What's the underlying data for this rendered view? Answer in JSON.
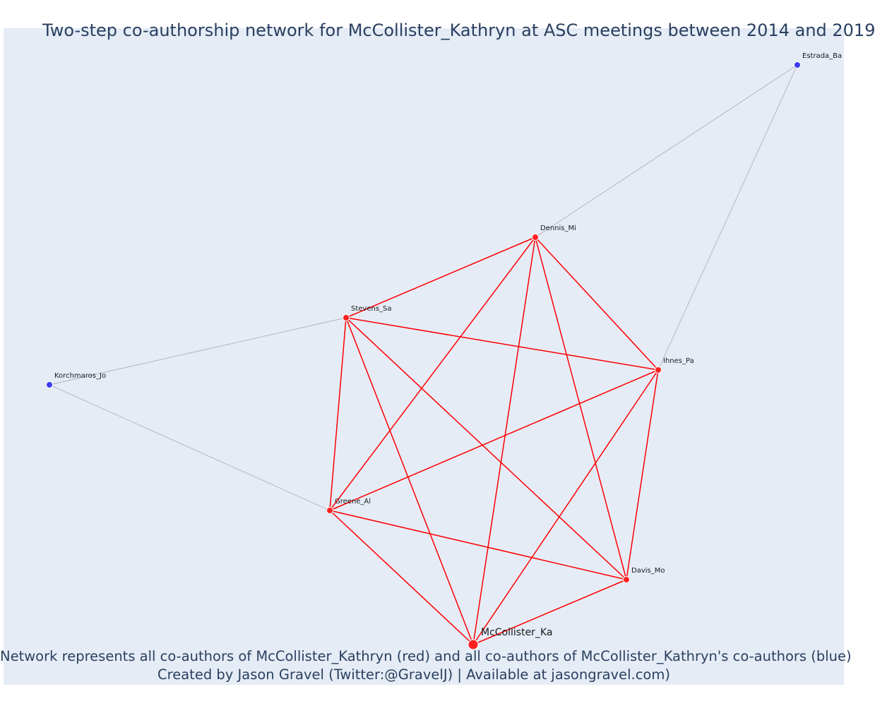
{
  "title": "Two-step co-authorship network for McCollister_Kathryn at ASC meetings between 2014 and 2019",
  "caption": {
    "line1": "Network represents all co-authors of McCollister_Kathryn (red) and all co-authors of McCollister_Kathryn's co-authors (blue)",
    "line2": "Created by Jason Gravel (Twitter:@GravelJ) | Available at jasongravel.com)"
  },
  "colors": {
    "background": "#e5ecf6",
    "red": "#ff2020",
    "blue": "#3b3bf0",
    "red_edge": "#ff0000",
    "grey_edge": "#b0b0c0",
    "text": "#2a3f5f"
  },
  "nodes": [
    {
      "id": "McCollister_Ka",
      "group": "focal"
    },
    {
      "id": "Dennis_Mi",
      "group": "red"
    },
    {
      "id": "Stevens_Sa",
      "group": "red"
    },
    {
      "id": "Ihnes_Pa",
      "group": "red"
    },
    {
      "id": "Greene_Al",
      "group": "red"
    },
    {
      "id": "Davis_Mo",
      "group": "red"
    },
    {
      "id": "Estrada_Ba",
      "group": "blue"
    },
    {
      "id": "Korchmaros_Jo",
      "group": "blue"
    }
  ],
  "edges": [
    {
      "source": "Dennis_Mi",
      "target": "Stevens_Sa",
      "type": "red"
    },
    {
      "source": "Dennis_Mi",
      "target": "Ihnes_Pa",
      "type": "red"
    },
    {
      "source": "Dennis_Mi",
      "target": "Greene_Al",
      "type": "red"
    },
    {
      "source": "Dennis_Mi",
      "target": "Davis_Mo",
      "type": "red"
    },
    {
      "source": "Dennis_Mi",
      "target": "McCollister_Ka",
      "type": "red"
    },
    {
      "source": "Stevens_Sa",
      "target": "Ihnes_Pa",
      "type": "red"
    },
    {
      "source": "Stevens_Sa",
      "target": "Greene_Al",
      "type": "red"
    },
    {
      "source": "Stevens_Sa",
      "target": "Davis_Mo",
      "type": "red"
    },
    {
      "source": "Stevens_Sa",
      "target": "McCollister_Ka",
      "type": "red"
    },
    {
      "source": "Ihnes_Pa",
      "target": "Greene_Al",
      "type": "red"
    },
    {
      "source": "Ihnes_Pa",
      "target": "Davis_Mo",
      "type": "red"
    },
    {
      "source": "Ihnes_Pa",
      "target": "McCollister_Ka",
      "type": "red"
    },
    {
      "source": "Greene_Al",
      "target": "Davis_Mo",
      "type": "red"
    },
    {
      "source": "Greene_Al",
      "target": "McCollister_Ka",
      "type": "red"
    },
    {
      "source": "Davis_Mo",
      "target": "McCollister_Ka",
      "type": "red"
    },
    {
      "source": "Estrada_Ba",
      "target": "Dennis_Mi",
      "type": "grey"
    },
    {
      "source": "Estrada_Ba",
      "target": "Ihnes_Pa",
      "type": "grey"
    },
    {
      "source": "Korchmaros_Jo",
      "target": "Stevens_Sa",
      "type": "grey"
    },
    {
      "source": "Korchmaros_Jo",
      "target": "Greene_Al",
      "type": "grey"
    }
  ]
}
